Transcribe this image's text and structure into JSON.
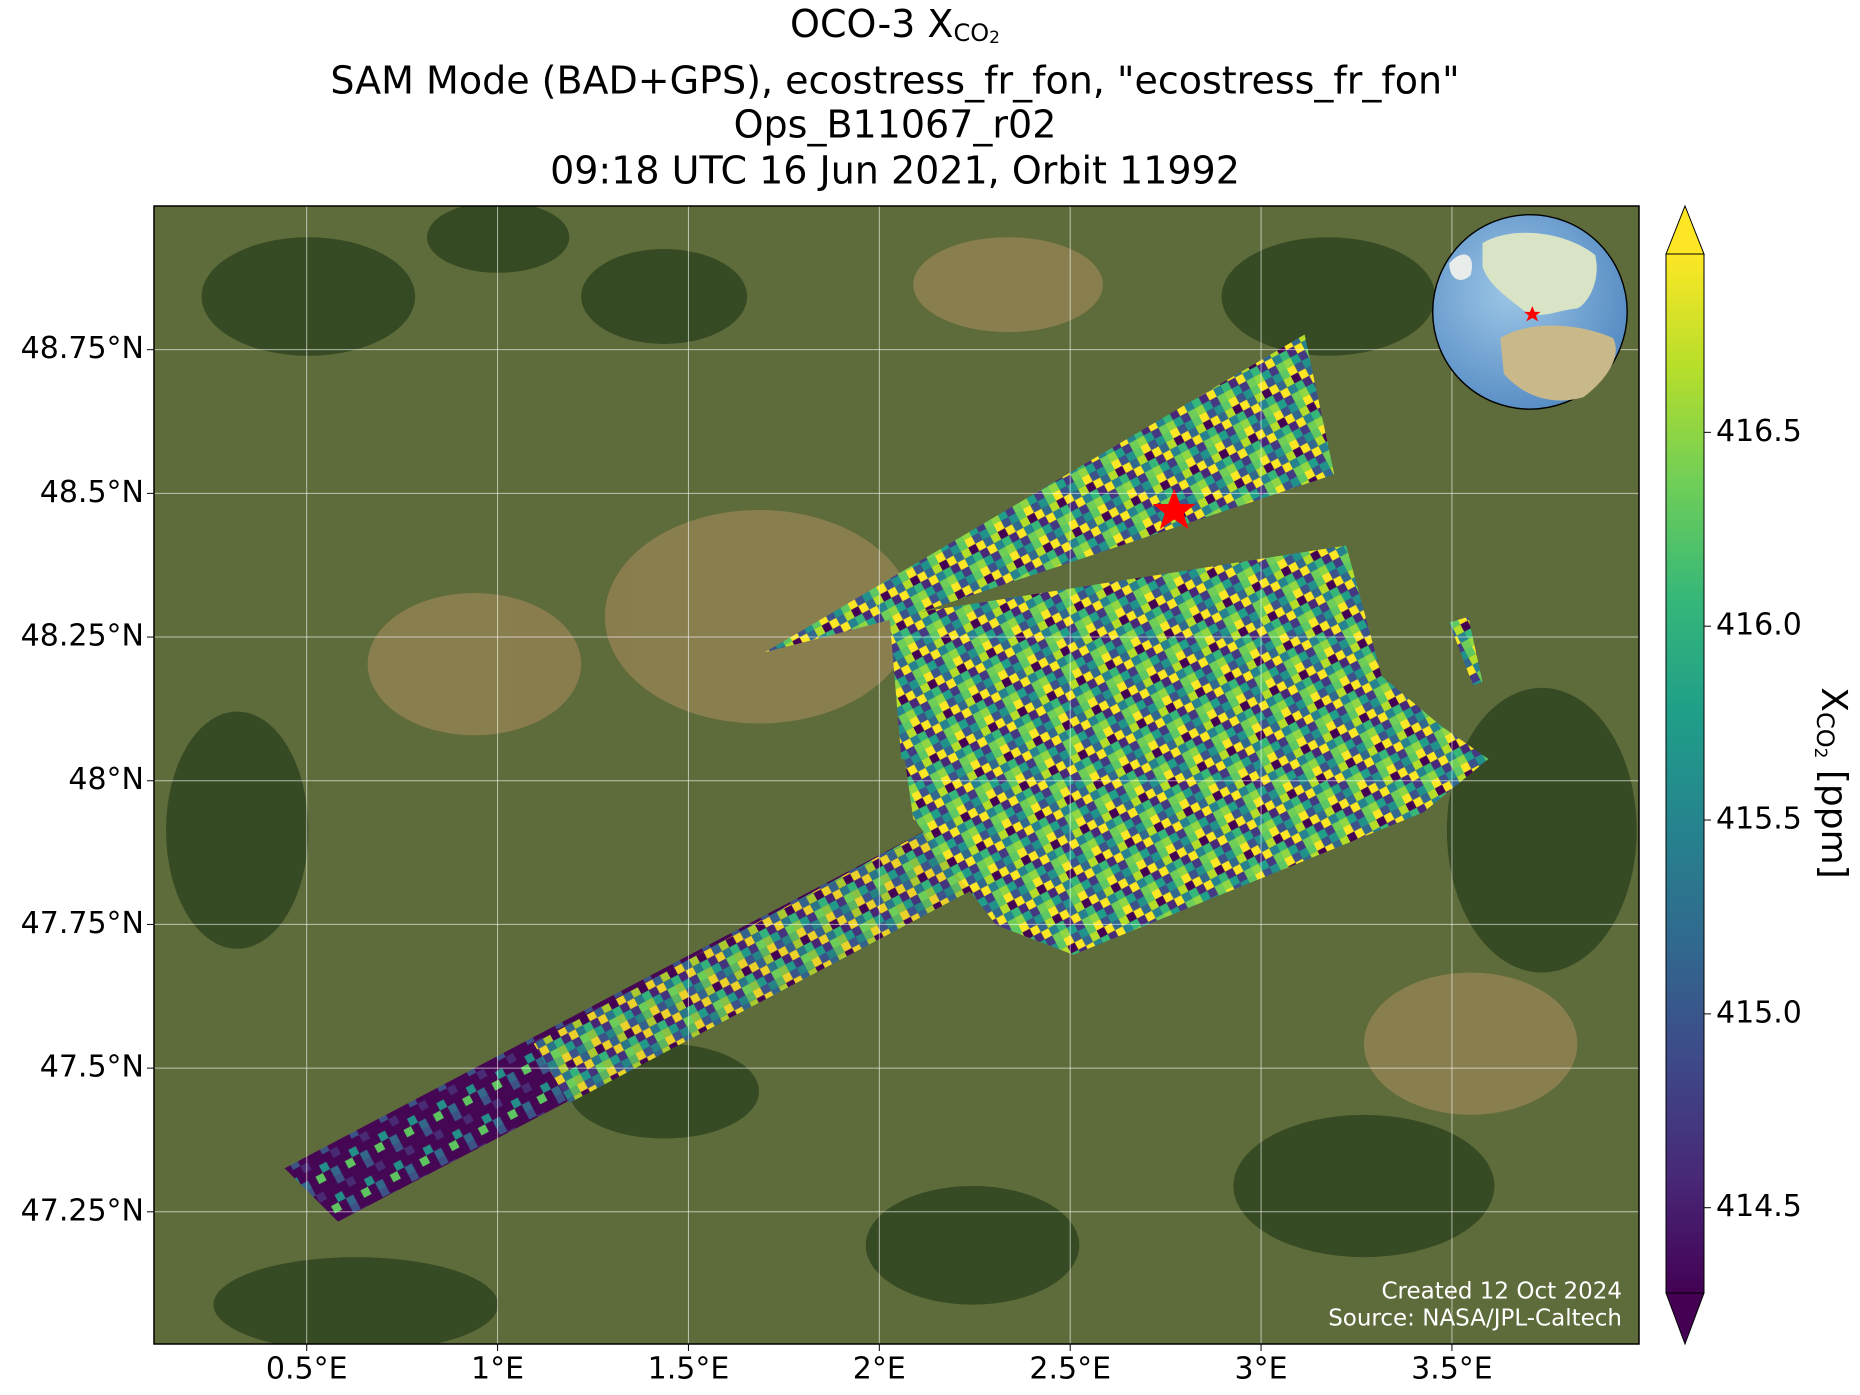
{
  "chart_data": {
    "type": "map",
    "title": {
      "text": "OCO-3 X",
      "subscript": "CO",
      "subscript_digit": "2"
    },
    "subtitle": [
      "SAM Mode (BAD+GPS), ecostress_fr_fon, \"ecostress_fr_fon\"",
      "Ops_B11067_r02",
      "09:18 UTC 16 Jun 2021, Orbit 11992"
    ],
    "xlim": [
      0.1,
      3.99
    ],
    "xticks": [
      {
        "value": 0.5,
        "label": "0.5°E"
      },
      {
        "value": 1,
        "label": "1°E"
      },
      {
        "value": 1.5,
        "label": "1.5°E"
      },
      {
        "value": 2,
        "label": "2°E"
      },
      {
        "value": 2.5,
        "label": "2.5°E"
      },
      {
        "value": 3,
        "label": "3°E"
      },
      {
        "value": 3.5,
        "label": "3.5°E"
      }
    ],
    "ylim": [
      47.02,
      49.0
    ],
    "yticks": [
      {
        "value": 47.25,
        "label": "47.25°N"
      },
      {
        "value": 47.5,
        "label": "47.5°N"
      },
      {
        "value": 47.75,
        "label": "47.75°N"
      },
      {
        "value": 48,
        "label": "48°N"
      },
      {
        "value": 48.25,
        "label": "48.25°N"
      },
      {
        "value": 48.5,
        "label": "48.5°N"
      },
      {
        "value": 48.75,
        "label": "48.75°N"
      }
    ],
    "grid": true,
    "colorbar": {
      "label": {
        "text": "X",
        "subscript": "CO",
        "subscript_digit": "2",
        "units": " [ppm]"
      },
      "clim": [
        414.28,
        416.96
      ],
      "ticks": [
        414.5,
        {
          "value": 415,
          "label": "415.0"
        },
        415.5,
        {
          "value": 416,
          "label": "416.0"
        },
        416.5
      ],
      "colormap": "viridis"
    },
    "credits": [
      "Created 12 Oct 2024",
      "Source: NASA/JPL-Caltech"
    ]
  }
}
